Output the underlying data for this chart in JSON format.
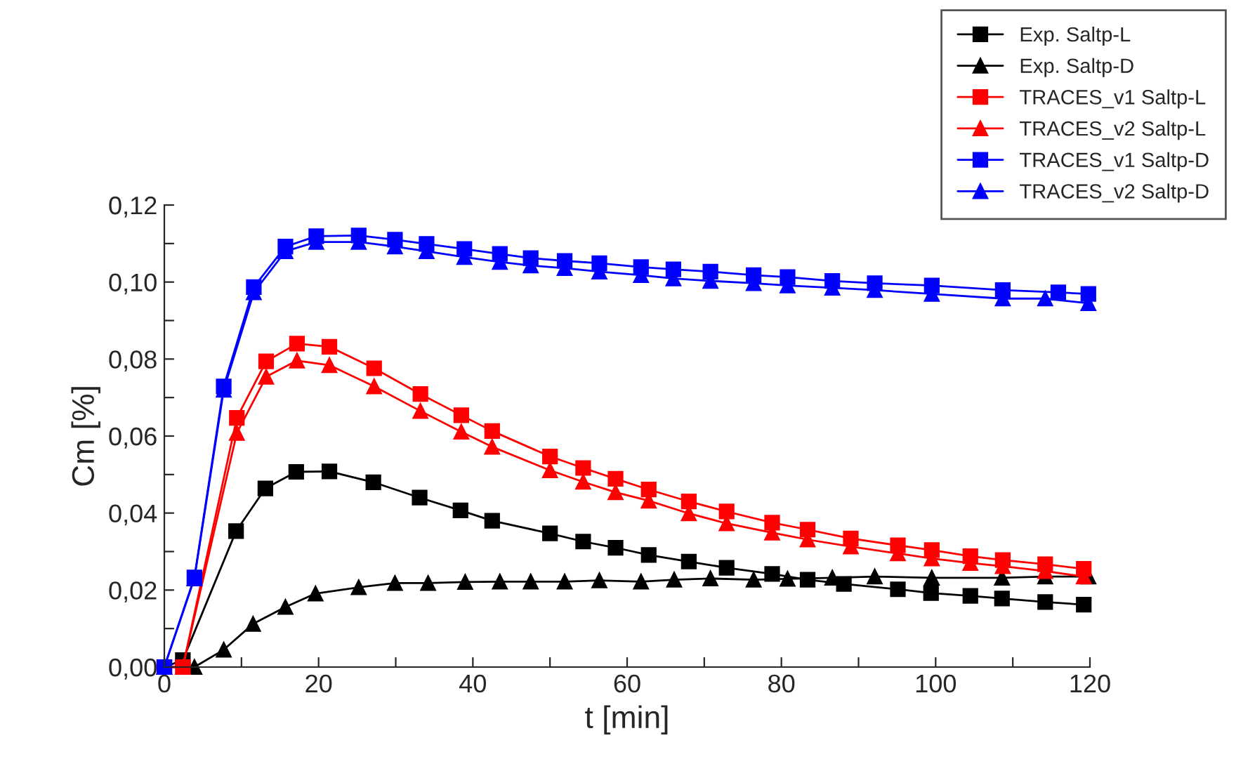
{
  "chart_data": {
    "type": "line",
    "xlabel": "t [min]",
    "ylabel": "Cm [%]",
    "xlim": [
      0,
      120
    ],
    "ylim": [
      0,
      0.12
    ],
    "xticks": [
      0,
      {
        "value": 10,
        "label": null
      },
      20,
      {
        "value": 30,
        "label": null
      },
      40,
      {
        "value": 50,
        "label": null
      },
      60,
      {
        "value": 70,
        "label": null
      },
      80,
      {
        "value": 90,
        "label": null
      },
      100,
      {
        "value": 110,
        "label": null
      },
      120
    ],
    "yticks": [
      {
        "value": 0,
        "label": "0,00"
      },
      {
        "value": 0.01,
        "label": null
      },
      {
        "value": 0.02,
        "label": "0,02"
      },
      {
        "value": 0.03,
        "label": null
      },
      {
        "value": 0.04,
        "label": "0,04"
      },
      {
        "value": 0.05,
        "label": null
      },
      {
        "value": 0.06,
        "label": "0,06"
      },
      {
        "value": 0.07,
        "label": null
      },
      {
        "value": 0.08,
        "label": "0,08"
      },
      {
        "value": 0.09,
        "label": null
      },
      {
        "value": 0.1,
        "label": "0,10"
      },
      {
        "value": 0.11,
        "label": null
      },
      {
        "value": 0.12,
        "label": "0,12"
      }
    ],
    "grid": false,
    "legend": "top right",
    "line_style": "solid",
    "series": [
      {
        "name": "Exp. Saltp-L",
        "color": "#000000",
        "marker": "square",
        "x": [
          0,
          2.4,
          9.3,
          13.1,
          17.1,
          21.4,
          27.1,
          33.1,
          38.4,
          42.5,
          50.0,
          54.3,
          58.5,
          62.8,
          68.0,
          72.9,
          78.8,
          83.4,
          88.1,
          95.1,
          99.4,
          104.5,
          108.6,
          114.2,
          119.2
        ],
        "values": [
          0,
          0.0018,
          0.0353,
          0.0464,
          0.0507,
          0.0508,
          0.048,
          0.044,
          0.0407,
          0.038,
          0.0347,
          0.0326,
          0.031,
          0.0291,
          0.0274,
          0.0258,
          0.0242,
          0.0227,
          0.0216,
          0.0202,
          0.0192,
          0.0185,
          0.0178,
          0.0169,
          0.0162
        ]
      },
      {
        "name": "Exp. Saltp-D",
        "color": "#000000",
        "marker": "triangle",
        "x": [
          3.9,
          7.7,
          11.5,
          15.7,
          19.6,
          25.2,
          29.9,
          34.2,
          39.0,
          43.5,
          47.5,
          51.9,
          56.4,
          61.8,
          66.1,
          70.8,
          76.4,
          80.8,
          86.6,
          92.1,
          99.5,
          108.6,
          114.2,
          119.8
        ],
        "values": [
          0,
          0.0045,
          0.0112,
          0.0156,
          0.0191,
          0.0207,
          0.0218,
          0.0218,
          0.0221,
          0.0222,
          0.0222,
          0.0222,
          0.0225,
          0.0222,
          0.0227,
          0.023,
          0.0227,
          0.0229,
          0.0232,
          0.0235,
          0.0232,
          0.0232,
          0.0235,
          0.0235
        ]
      },
      {
        "name": "TRACES_v1 Saltp-L",
        "color": "#ff0000",
        "marker": "square",
        "x": [
          0,
          2.4,
          9.4,
          13.2,
          17.2,
          21.4,
          27.2,
          33.2,
          38.5,
          42.5,
          50.0,
          54.3,
          58.5,
          62.8,
          68.0,
          72.9,
          78.8,
          83.4,
          89.0,
          95.1,
          99.5,
          104.5,
          108.7,
          114.2,
          119.2
        ],
        "values": [
          0,
          0,
          0.0647,
          0.0794,
          0.084,
          0.0832,
          0.0776,
          0.0709,
          0.0654,
          0.0613,
          0.0547,
          0.0517,
          0.0489,
          0.0461,
          0.043,
          0.0404,
          0.0375,
          0.0357,
          0.0334,
          0.0316,
          0.0304,
          0.0288,
          0.0278,
          0.0267,
          0.0255
        ]
      },
      {
        "name": "TRACES_v2 Saltp-L",
        "color": "#ff0000",
        "marker": "triangle",
        "x": [
          0,
          2.4,
          9.4,
          13.2,
          17.2,
          21.4,
          27.2,
          33.2,
          38.5,
          42.5,
          50.0,
          54.3,
          58.5,
          62.8,
          68.0,
          72.9,
          78.8,
          83.4,
          89.0,
          95.1,
          99.5,
          104.5,
          108.7,
          114.2,
          119.2
        ],
        "values": [
          0,
          0,
          0.0608,
          0.0754,
          0.0796,
          0.0784,
          0.0729,
          0.0665,
          0.0611,
          0.0572,
          0.0511,
          0.0481,
          0.0454,
          0.0432,
          0.0399,
          0.0373,
          0.0349,
          0.0331,
          0.0313,
          0.0295,
          0.0282,
          0.027,
          0.0262,
          0.0249,
          0.0235
        ]
      },
      {
        "name": "TRACES_v1 Saltp-D",
        "color": "#0000ff",
        "marker": "square",
        "x": [
          0,
          3.9,
          7.7,
          11.6,
          15.7,
          19.7,
          25.2,
          29.9,
          34.0,
          38.9,
          43.5,
          47.5,
          51.9,
          56.4,
          61.8,
          66.0,
          70.8,
          76.4,
          80.8,
          86.6,
          92.1,
          99.5,
          108.7,
          115.9,
          119.8
        ],
        "values": [
          0,
          0.0233,
          0.0729,
          0.0987,
          0.1092,
          0.1119,
          0.1121,
          0.111,
          0.1099,
          0.1086,
          0.1073,
          0.1062,
          0.1055,
          0.1049,
          0.1039,
          0.1033,
          0.1027,
          0.1018,
          0.1013,
          0.1003,
          0.0997,
          0.0991,
          0.0979,
          0.0973,
          0.0969
        ]
      },
      {
        "name": "TRACES_v2 Saltp-D",
        "color": "#0000ff",
        "marker": "triangle",
        "x": [
          0,
          3.9,
          7.7,
          11.6,
          15.7,
          19.7,
          25.2,
          29.9,
          34.0,
          38.9,
          43.5,
          47.5,
          51.9,
          56.4,
          61.8,
          66.0,
          70.8,
          76.4,
          80.8,
          86.6,
          92.1,
          99.5,
          108.7,
          114.2,
          119.8
        ],
        "values": [
          0,
          0.023,
          0.072,
          0.0973,
          0.108,
          0.1104,
          0.1104,
          0.1092,
          0.108,
          0.1065,
          0.1052,
          0.1043,
          0.1036,
          0.1027,
          0.1018,
          0.1009,
          0.1003,
          0.0997,
          0.0991,
          0.0985,
          0.0979,
          0.0969,
          0.0957,
          0.0957,
          0.0945
        ]
      }
    ]
  }
}
